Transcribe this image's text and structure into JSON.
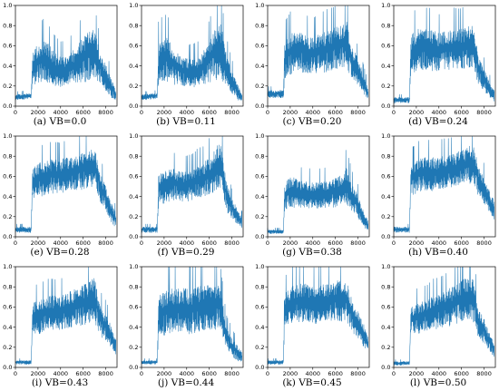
{
  "figure": {
    "rows": 3,
    "cols": 4,
    "series_color": "#1f77b4"
  },
  "chart_data": [
    {
      "type": "line",
      "caption": "(a) VB=0.0",
      "xlim": [
        0,
        9000
      ],
      "ylim": [
        0,
        1.0
      ],
      "xticks": [
        0,
        2000,
        4000,
        6000,
        8000
      ],
      "yticks": [
        0.0,
        0.2,
        0.4,
        0.6,
        0.8,
        1.0
      ],
      "xtick_labels": [
        "0",
        "2000",
        "4000",
        "6000",
        "8000"
      ],
      "ytick_labels": [
        "0.0",
        "0.2",
        "0.4",
        "0.6",
        "0.8",
        "1.0"
      ],
      "x": [
        0,
        500,
        1000,
        1400,
        1500,
        2000,
        2500,
        3000,
        3500,
        4000,
        4500,
        5000,
        5500,
        6000,
        6500,
        7000,
        7500,
        8000,
        8500,
        8900
      ],
      "y": [
        0.09,
        0.09,
        0.1,
        0.1,
        0.38,
        0.42,
        0.46,
        0.42,
        0.36,
        0.34,
        0.34,
        0.37,
        0.42,
        0.46,
        0.5,
        0.52,
        0.38,
        0.28,
        0.18,
        0.1
      ],
      "spread": [
        0.03,
        0.03,
        0.03,
        0.03,
        0.18,
        0.2,
        0.22,
        0.2,
        0.18,
        0.16,
        0.16,
        0.18,
        0.2,
        0.24,
        0.26,
        0.26,
        0.16,
        0.14,
        0.1,
        0.06
      ]
    },
    {
      "type": "line",
      "caption": "(b) VB=0.11",
      "xlim": [
        0,
        9000
      ],
      "ylim": [
        0,
        1.0
      ],
      "xticks": [
        0,
        2000,
        4000,
        6000,
        8000
      ],
      "yticks": [
        0.0,
        0.2,
        0.4,
        0.6,
        0.8,
        1.0
      ],
      "xtick_labels": [
        "0",
        "2000",
        "4000",
        "6000",
        "8000"
      ],
      "ytick_labels": [
        "0.0",
        "0.2",
        "0.4",
        "0.6",
        "0.8",
        "1.0"
      ],
      "x": [
        0,
        500,
        1000,
        1400,
        1500,
        2000,
        2500,
        3000,
        3500,
        4000,
        4500,
        5000,
        5500,
        6000,
        6500,
        7000,
        7500,
        8000,
        8500,
        8900
      ],
      "y": [
        0.09,
        0.09,
        0.1,
        0.1,
        0.42,
        0.48,
        0.44,
        0.38,
        0.34,
        0.33,
        0.33,
        0.34,
        0.38,
        0.44,
        0.52,
        0.56,
        0.36,
        0.24,
        0.14,
        0.08
      ],
      "spread": [
        0.03,
        0.03,
        0.03,
        0.03,
        0.22,
        0.24,
        0.22,
        0.18,
        0.16,
        0.15,
        0.15,
        0.16,
        0.18,
        0.22,
        0.28,
        0.3,
        0.18,
        0.12,
        0.08,
        0.05
      ]
    },
    {
      "type": "line",
      "caption": "(c) VB=0.20",
      "xlim": [
        0,
        9000
      ],
      "ylim": [
        0,
        1.0
      ],
      "xticks": [
        0,
        2000,
        4000,
        6000,
        8000
      ],
      "yticks": [
        0.0,
        0.2,
        0.4,
        0.6,
        0.8,
        1.0
      ],
      "xtick_labels": [
        "0",
        "2000",
        "4000",
        "6000",
        "8000"
      ],
      "ytick_labels": [
        "0.0",
        "0.2",
        "0.4",
        "0.6",
        "0.8",
        "1.0"
      ],
      "x": [
        0,
        500,
        1000,
        1400,
        1500,
        2000,
        2500,
        3000,
        3500,
        4000,
        4500,
        5000,
        5500,
        6000,
        6500,
        7000,
        7500,
        8000,
        8500,
        8900
      ],
      "y": [
        0.12,
        0.12,
        0.12,
        0.12,
        0.46,
        0.52,
        0.55,
        0.54,
        0.52,
        0.5,
        0.52,
        0.54,
        0.55,
        0.58,
        0.6,
        0.62,
        0.42,
        0.34,
        0.22,
        0.12
      ],
      "spread": [
        0.04,
        0.04,
        0.04,
        0.04,
        0.2,
        0.22,
        0.22,
        0.22,
        0.2,
        0.2,
        0.2,
        0.22,
        0.22,
        0.22,
        0.24,
        0.24,
        0.18,
        0.14,
        0.1,
        0.06
      ]
    },
    {
      "type": "line",
      "caption": "(d) VB=0.24",
      "xlim": [
        0,
        9000
      ],
      "ylim": [
        0,
        1.0
      ],
      "xticks": [
        0,
        2000,
        4000,
        6000,
        8000
      ],
      "yticks": [
        0.0,
        0.2,
        0.4,
        0.6,
        0.8,
        1.0
      ],
      "xtick_labels": [
        "0",
        "2000",
        "4000",
        "6000",
        "8000"
      ],
      "ytick_labels": [
        "0.0",
        "0.2",
        "0.4",
        "0.6",
        "0.8",
        "1.0"
      ],
      "x": [
        0,
        500,
        1000,
        1400,
        1500,
        2000,
        2500,
        3000,
        3500,
        4000,
        4500,
        5000,
        5500,
        6000,
        6500,
        7000,
        7500,
        8000,
        8500,
        8900
      ],
      "y": [
        0.06,
        0.06,
        0.06,
        0.06,
        0.5,
        0.56,
        0.55,
        0.56,
        0.55,
        0.54,
        0.55,
        0.56,
        0.56,
        0.56,
        0.58,
        0.6,
        0.36,
        0.26,
        0.16,
        0.1
      ],
      "spread": [
        0.03,
        0.03,
        0.03,
        0.03,
        0.2,
        0.22,
        0.22,
        0.22,
        0.22,
        0.2,
        0.2,
        0.22,
        0.22,
        0.22,
        0.22,
        0.22,
        0.16,
        0.12,
        0.08,
        0.06
      ]
    },
    {
      "type": "line",
      "caption": "(e) VB=0.28",
      "xlim": [
        0,
        9000
      ],
      "ylim": [
        0,
        1.0
      ],
      "xticks": [
        0,
        2000,
        4000,
        6000,
        8000
      ],
      "yticks": [
        0.0,
        0.2,
        0.4,
        0.6,
        0.8,
        1.0
      ],
      "xtick_labels": [
        "0",
        "2000",
        "4000",
        "6000",
        "8000"
      ],
      "ytick_labels": [
        "0.0",
        "0.2",
        "0.4",
        "0.6",
        "0.8",
        "1.0"
      ],
      "x": [
        0,
        500,
        1000,
        1400,
        1500,
        2000,
        2500,
        3000,
        3500,
        4000,
        4500,
        5000,
        5500,
        6000,
        6500,
        7000,
        7500,
        8000,
        8500,
        8900
      ],
      "y": [
        0.07,
        0.07,
        0.07,
        0.07,
        0.52,
        0.56,
        0.58,
        0.6,
        0.6,
        0.6,
        0.62,
        0.62,
        0.64,
        0.66,
        0.68,
        0.7,
        0.5,
        0.38,
        0.24,
        0.16
      ],
      "spread": [
        0.03,
        0.03,
        0.03,
        0.03,
        0.16,
        0.18,
        0.18,
        0.18,
        0.18,
        0.18,
        0.18,
        0.18,
        0.2,
        0.2,
        0.2,
        0.22,
        0.16,
        0.12,
        0.1,
        0.08
      ]
    },
    {
      "type": "line",
      "caption": "(f) VB=0.29",
      "xlim": [
        0,
        9000
      ],
      "ylim": [
        0,
        1.0
      ],
      "xticks": [
        0,
        2000,
        4000,
        6000,
        8000
      ],
      "yticks": [
        0.0,
        0.2,
        0.4,
        0.6,
        0.8,
        1.0
      ],
      "xtick_labels": [
        "0",
        "2000",
        "4000",
        "6000",
        "8000"
      ],
      "ytick_labels": [
        "0.0",
        "0.2",
        "0.4",
        "0.6",
        "0.8",
        "1.0"
      ],
      "x": [
        0,
        500,
        1000,
        1400,
        1500,
        2000,
        2500,
        3000,
        3500,
        4000,
        4500,
        5000,
        5500,
        6000,
        6500,
        7000,
        7500,
        8000,
        8500,
        8900
      ],
      "y": [
        0.07,
        0.07,
        0.07,
        0.07,
        0.46,
        0.5,
        0.52,
        0.52,
        0.5,
        0.5,
        0.52,
        0.54,
        0.56,
        0.6,
        0.66,
        0.72,
        0.4,
        0.28,
        0.2,
        0.14
      ],
      "spread": [
        0.03,
        0.03,
        0.03,
        0.03,
        0.16,
        0.18,
        0.18,
        0.16,
        0.16,
        0.16,
        0.16,
        0.18,
        0.18,
        0.2,
        0.22,
        0.26,
        0.16,
        0.1,
        0.08,
        0.06
      ]
    },
    {
      "type": "line",
      "caption": "(g) VB=0.38",
      "xlim": [
        0,
        9000
      ],
      "ylim": [
        0,
        1.0
      ],
      "xticks": [
        0,
        2000,
        4000,
        6000,
        8000
      ],
      "yticks": [
        0.0,
        0.2,
        0.4,
        0.6,
        0.8,
        1.0
      ],
      "xtick_labels": [
        "0",
        "2000",
        "4000",
        "6000",
        "8000"
      ],
      "ytick_labels": [
        "0.0",
        "0.2",
        "0.4",
        "0.6",
        "0.8",
        "1.0"
      ],
      "x": [
        0,
        500,
        1000,
        1400,
        1500,
        2000,
        2500,
        3000,
        3500,
        4000,
        4500,
        5000,
        5500,
        6000,
        6500,
        7000,
        7500,
        8000,
        8500,
        8900
      ],
      "y": [
        0.05,
        0.05,
        0.05,
        0.05,
        0.4,
        0.44,
        0.44,
        0.42,
        0.42,
        0.41,
        0.41,
        0.42,
        0.42,
        0.44,
        0.46,
        0.5,
        0.38,
        0.3,
        0.18,
        0.1
      ],
      "spread": [
        0.02,
        0.02,
        0.02,
        0.02,
        0.14,
        0.16,
        0.16,
        0.14,
        0.14,
        0.14,
        0.14,
        0.14,
        0.14,
        0.16,
        0.16,
        0.2,
        0.14,
        0.12,
        0.08,
        0.06
      ]
    },
    {
      "type": "line",
      "caption": "(h) VB=0.40",
      "xlim": [
        0,
        9000
      ],
      "ylim": [
        0,
        1.0
      ],
      "xticks": [
        0,
        2000,
        4000,
        6000,
        8000
      ],
      "yticks": [
        0.0,
        0.2,
        0.4,
        0.6,
        0.8,
        1.0
      ],
      "xtick_labels": [
        "0",
        "2000",
        "4000",
        "6000",
        "8000"
      ],
      "ytick_labels": [
        "0.0",
        "0.2",
        "0.4",
        "0.6",
        "0.8",
        "1.0"
      ],
      "x": [
        0,
        500,
        1000,
        1400,
        1500,
        2000,
        2500,
        3000,
        3500,
        4000,
        4500,
        5000,
        5500,
        6000,
        6500,
        7000,
        7500,
        8000,
        8500,
        8900
      ],
      "y": [
        0.07,
        0.07,
        0.07,
        0.07,
        0.56,
        0.6,
        0.62,
        0.62,
        0.62,
        0.62,
        0.64,
        0.64,
        0.66,
        0.68,
        0.7,
        0.72,
        0.56,
        0.46,
        0.34,
        0.26
      ],
      "spread": [
        0.03,
        0.03,
        0.03,
        0.03,
        0.16,
        0.18,
        0.18,
        0.18,
        0.18,
        0.18,
        0.18,
        0.18,
        0.18,
        0.2,
        0.2,
        0.22,
        0.16,
        0.14,
        0.12,
        0.1
      ]
    },
    {
      "type": "line",
      "caption": "(i) VB=0.43",
      "xlim": [
        0,
        9000
      ],
      "ylim": [
        0,
        1.0
      ],
      "xticks": [
        0,
        2000,
        4000,
        6000,
        8000
      ],
      "yticks": [
        0.0,
        0.2,
        0.4,
        0.6,
        0.8,
        1.0
      ],
      "xtick_labels": [
        "0",
        "2000",
        "4000",
        "6000",
        "8000"
      ],
      "ytick_labels": [
        "0.0",
        "0.2",
        "0.4",
        "0.6",
        "0.8",
        "1.0"
      ],
      "x": [
        0,
        500,
        1000,
        1400,
        1500,
        2000,
        2500,
        3000,
        3500,
        4000,
        4500,
        5000,
        5500,
        6000,
        6500,
        7000,
        7500,
        8000,
        8500,
        8900
      ],
      "y": [
        0.05,
        0.05,
        0.05,
        0.05,
        0.48,
        0.5,
        0.52,
        0.54,
        0.54,
        0.54,
        0.56,
        0.58,
        0.6,
        0.62,
        0.64,
        0.68,
        0.46,
        0.4,
        0.3,
        0.2
      ],
      "spread": [
        0.02,
        0.02,
        0.02,
        0.02,
        0.16,
        0.18,
        0.18,
        0.18,
        0.18,
        0.18,
        0.18,
        0.2,
        0.2,
        0.22,
        0.22,
        0.24,
        0.16,
        0.14,
        0.12,
        0.08
      ]
    },
    {
      "type": "line",
      "caption": "(j) VB=0.44",
      "xlim": [
        0,
        9000
      ],
      "ylim": [
        0,
        1.0
      ],
      "xticks": [
        0,
        2000,
        4000,
        6000,
        8000
      ],
      "yticks": [
        0.0,
        0.2,
        0.4,
        0.6,
        0.8,
        1.0
      ],
      "xtick_labels": [
        "0",
        "2000",
        "4000",
        "6000",
        "8000"
      ],
      "ytick_labels": [
        "0.0",
        "0.2",
        "0.4",
        "0.6",
        "0.8",
        "1.0"
      ],
      "x": [
        0,
        500,
        1000,
        1400,
        1500,
        2000,
        2500,
        3000,
        3500,
        4000,
        4500,
        5000,
        5500,
        6000,
        6500,
        7000,
        7500,
        8000,
        8500,
        8900
      ],
      "y": [
        0.05,
        0.05,
        0.05,
        0.05,
        0.5,
        0.54,
        0.56,
        0.56,
        0.56,
        0.56,
        0.56,
        0.58,
        0.6,
        0.6,
        0.6,
        0.6,
        0.3,
        0.2,
        0.14,
        0.1
      ],
      "spread": [
        0.02,
        0.02,
        0.02,
        0.02,
        0.22,
        0.24,
        0.24,
        0.24,
        0.24,
        0.24,
        0.24,
        0.24,
        0.24,
        0.24,
        0.24,
        0.22,
        0.12,
        0.1,
        0.08,
        0.06
      ]
    },
    {
      "type": "line",
      "caption": "(k) VB=0.45",
      "xlim": [
        0,
        9000
      ],
      "ylim": [
        0,
        1.0
      ],
      "xticks": [
        0,
        2000,
        4000,
        6000,
        8000
      ],
      "yticks": [
        0.0,
        0.2,
        0.4,
        0.6,
        0.8,
        1.0
      ],
      "xtick_labels": [
        "0",
        "2000",
        "4000",
        "6000",
        "8000"
      ],
      "ytick_labels": [
        "0.0",
        "0.2",
        "0.4",
        "0.6",
        "0.8",
        "1.0"
      ],
      "x": [
        0,
        500,
        1000,
        1400,
        1500,
        2000,
        2500,
        3000,
        3500,
        4000,
        4500,
        5000,
        5500,
        6000,
        6500,
        7000,
        7500,
        8000,
        8500,
        8900
      ],
      "y": [
        0.05,
        0.05,
        0.05,
        0.05,
        0.56,
        0.62,
        0.64,
        0.64,
        0.64,
        0.62,
        0.62,
        0.64,
        0.64,
        0.66,
        0.66,
        0.66,
        0.5,
        0.42,
        0.32,
        0.22
      ],
      "spread": [
        0.02,
        0.02,
        0.02,
        0.02,
        0.18,
        0.2,
        0.2,
        0.2,
        0.2,
        0.2,
        0.2,
        0.2,
        0.2,
        0.22,
        0.22,
        0.22,
        0.16,
        0.14,
        0.12,
        0.08
      ]
    },
    {
      "type": "line",
      "caption": "(l) VB=0.50",
      "xlim": [
        0,
        9000
      ],
      "ylim": [
        0,
        1.0
      ],
      "xticks": [
        0,
        2000,
        4000,
        6000,
        8000
      ],
      "yticks": [
        0.0,
        0.2,
        0.4,
        0.6,
        0.8,
        1.0
      ],
      "xtick_labels": [
        "0",
        "2000",
        "4000",
        "6000",
        "8000"
      ],
      "ytick_labels": [
        "0.0",
        "0.2",
        "0.4",
        "0.6",
        "0.8",
        "1.0"
      ],
      "x": [
        0,
        500,
        1000,
        1400,
        1500,
        2000,
        2500,
        3000,
        3500,
        4000,
        4500,
        5000,
        5500,
        6000,
        6500,
        7000,
        7500,
        8000,
        8500,
        8900
      ],
      "y": [
        0.04,
        0.04,
        0.04,
        0.04,
        0.46,
        0.48,
        0.5,
        0.52,
        0.54,
        0.56,
        0.58,
        0.6,
        0.62,
        0.66,
        0.68,
        0.7,
        0.44,
        0.36,
        0.24,
        0.16
      ],
      "spread": [
        0.02,
        0.02,
        0.02,
        0.02,
        0.14,
        0.16,
        0.16,
        0.16,
        0.18,
        0.18,
        0.18,
        0.2,
        0.2,
        0.22,
        0.22,
        0.24,
        0.16,
        0.14,
        0.1,
        0.08
      ]
    }
  ]
}
